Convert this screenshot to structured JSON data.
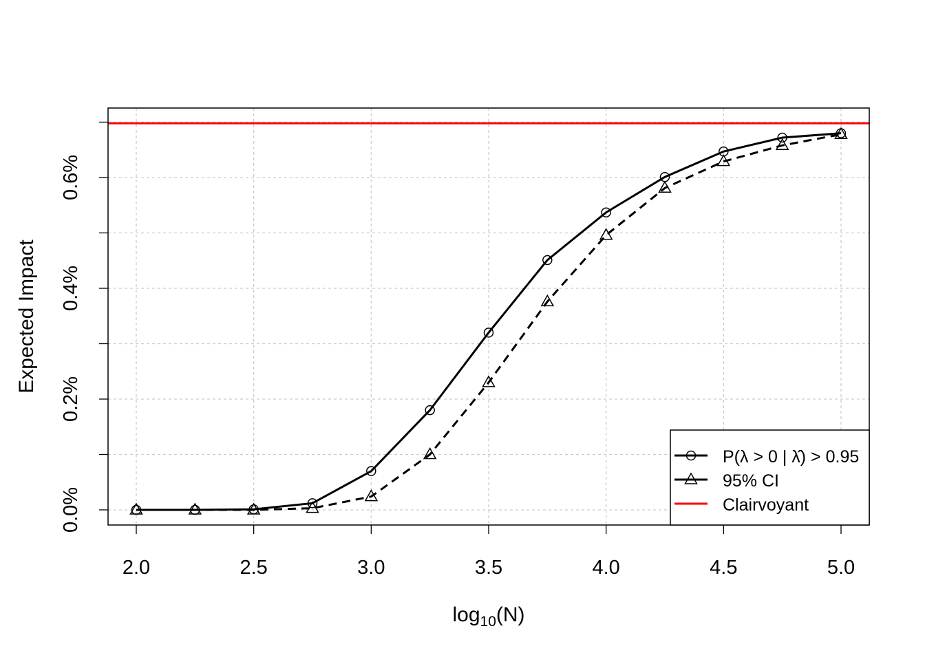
{
  "chart_data": {
    "type": "line",
    "title": "",
    "xlabel": "log10(N)",
    "xlabel_base": "log",
    "xlabel_sub": "10",
    "xlabel_rest": "(N)",
    "ylabel": "Expected Impact",
    "xlim": [
      2.0,
      5.0
    ],
    "ylim": [
      0.0,
      0.7
    ],
    "grid": true,
    "x_ticks": [
      2.0,
      2.5,
      3.0,
      3.5,
      4.0,
      4.5,
      5.0
    ],
    "x_tick_labels": [
      "2.0",
      "2.5",
      "3.0",
      "3.5",
      "4.0",
      "4.5",
      "5.0"
    ],
    "y_ticks": [
      0.0,
      0.1,
      0.2,
      0.3,
      0.4,
      0.5,
      0.6,
      0.7
    ],
    "y_tick_labels": [
      "0.0%",
      "",
      "0.2%",
      "",
      "0.4%",
      "",
      "0.6%",
      ""
    ],
    "x": [
      2.0,
      2.25,
      2.5,
      2.75,
      3.0,
      3.25,
      3.5,
      3.75,
      4.0,
      4.25,
      4.5,
      4.75,
      5.0
    ],
    "series": [
      {
        "name": "P(λ > 0 | λ̂) > 0.95",
        "marker": "circle",
        "line": "solid",
        "color": "#000000",
        "values": [
          0.0,
          0.0,
          0.001,
          0.012,
          0.07,
          0.18,
          0.32,
          0.451,
          0.537,
          0.601,
          0.647,
          0.672,
          0.68
        ]
      },
      {
        "name": "95% CI",
        "marker": "triangle",
        "line": "dashed",
        "color": "#000000",
        "values": [
          0.0,
          0.0,
          0.0,
          0.003,
          0.024,
          0.1,
          0.23,
          0.376,
          0.496,
          0.581,
          0.629,
          0.658,
          0.678
        ]
      }
    ],
    "hlines": [
      {
        "name": "Clairvoyant",
        "value": 0.698,
        "color": "#ff0000"
      }
    ],
    "legend": {
      "placement": "bottom-right",
      "entries": [
        "P(λ > 0 | λ̂) > 0.95",
        "95% CI",
        "Clairvoyant"
      ]
    }
  }
}
